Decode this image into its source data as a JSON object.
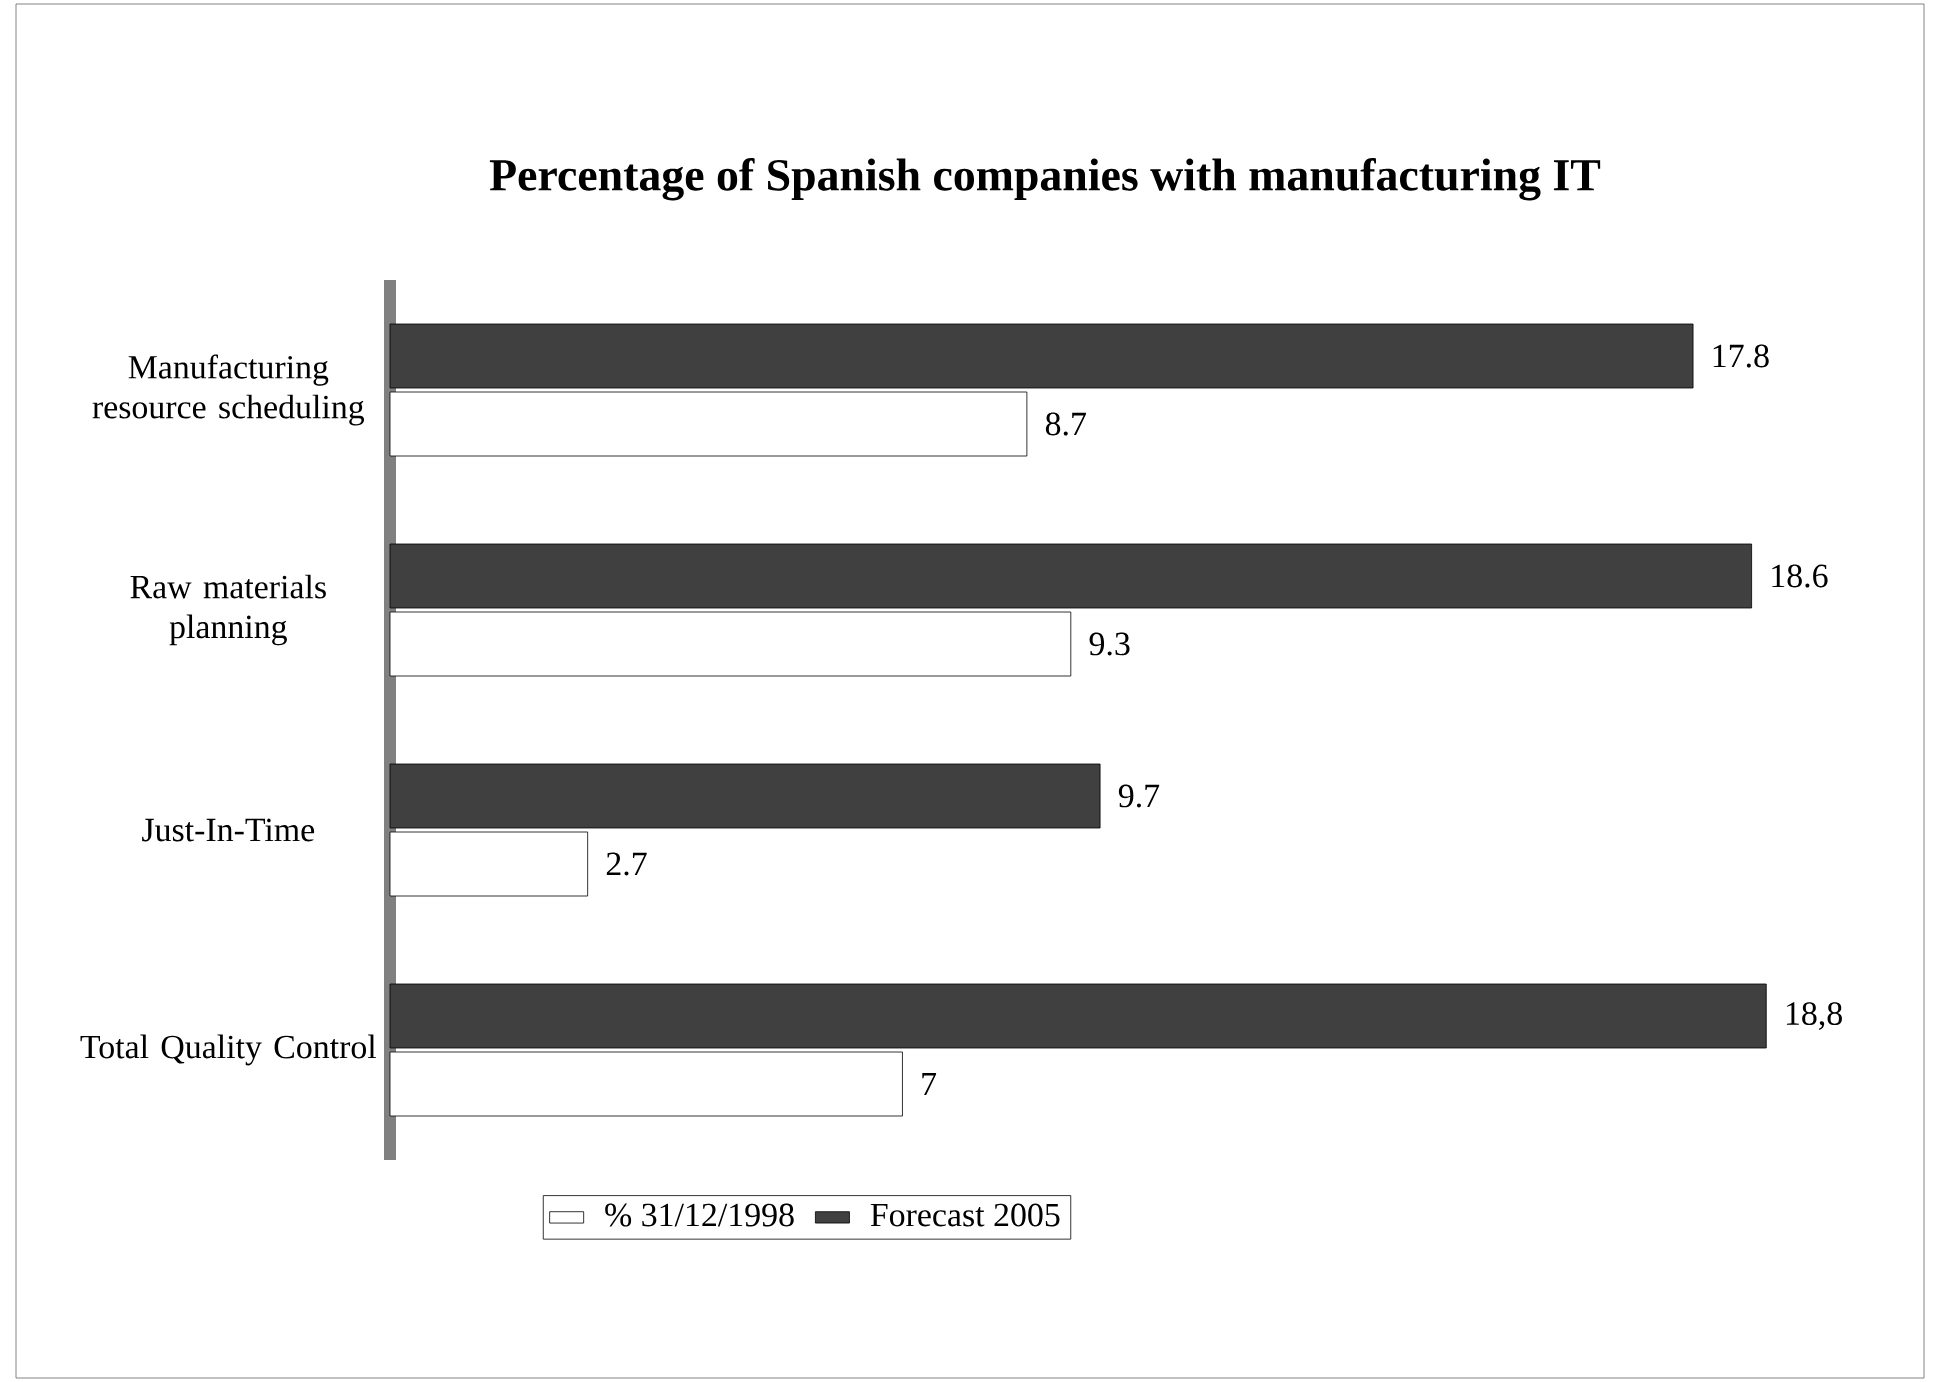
{
  "chart_data": {
    "type": "bar",
    "orientation": "horizontal",
    "title": "Percentage of Spanish companies with manufacturing IT",
    "categories": [
      "Manufacturing resource scheduling",
      "Raw materials planning",
      "Just-In-Time",
      "Total Quality Control"
    ],
    "series": [
      {
        "name": "% 31/12/1998",
        "color": "#ffffff",
        "values": [
          8.7,
          9.3,
          2.7,
          7
        ],
        "value_labels": [
          "8.7",
          "9.3",
          "2.7",
          "7"
        ]
      },
      {
        "name": "Forecast 2005",
        "color": "#404040",
        "values": [
          17.8,
          18.6,
          9.7,
          18.8
        ],
        "value_labels": [
          "17.8",
          "18.6",
          "9.7",
          "18,8"
        ]
      }
    ],
    "legend": "bottom",
    "tick_labels": "y",
    "grid": false
  }
}
